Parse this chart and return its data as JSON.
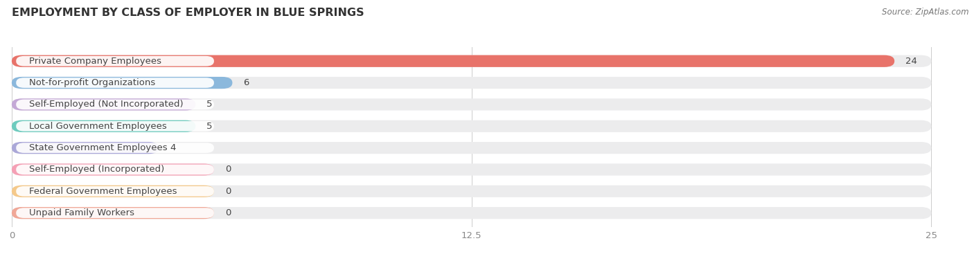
{
  "title": "EMPLOYMENT BY CLASS OF EMPLOYER IN BLUE SPRINGS",
  "source": "Source: ZipAtlas.com",
  "categories": [
    "Private Company Employees",
    "Not-for-profit Organizations",
    "Self-Employed (Not Incorporated)",
    "Local Government Employees",
    "State Government Employees",
    "Self-Employed (Incorporated)",
    "Federal Government Employees",
    "Unpaid Family Workers"
  ],
  "values": [
    24,
    6,
    5,
    5,
    4,
    0,
    0,
    0
  ],
  "bar_colors": [
    "#E8736A",
    "#8BB8DC",
    "#C4A8D6",
    "#6DCBBE",
    "#ABA8D8",
    "#F5A0B5",
    "#F5C98A",
    "#F0A898"
  ],
  "bg_bar_color": "#ECECED",
  "label_bg_color": "#ffffff",
  "xlim_max": 25,
  "xticks": [
    0,
    12.5,
    25
  ],
  "title_fontsize": 11.5,
  "label_fontsize": 9.5,
  "value_fontsize": 9.5,
  "source_fontsize": 8.5,
  "background_color": "#ffffff",
  "text_dark": "#444444",
  "text_light": "#888888"
}
